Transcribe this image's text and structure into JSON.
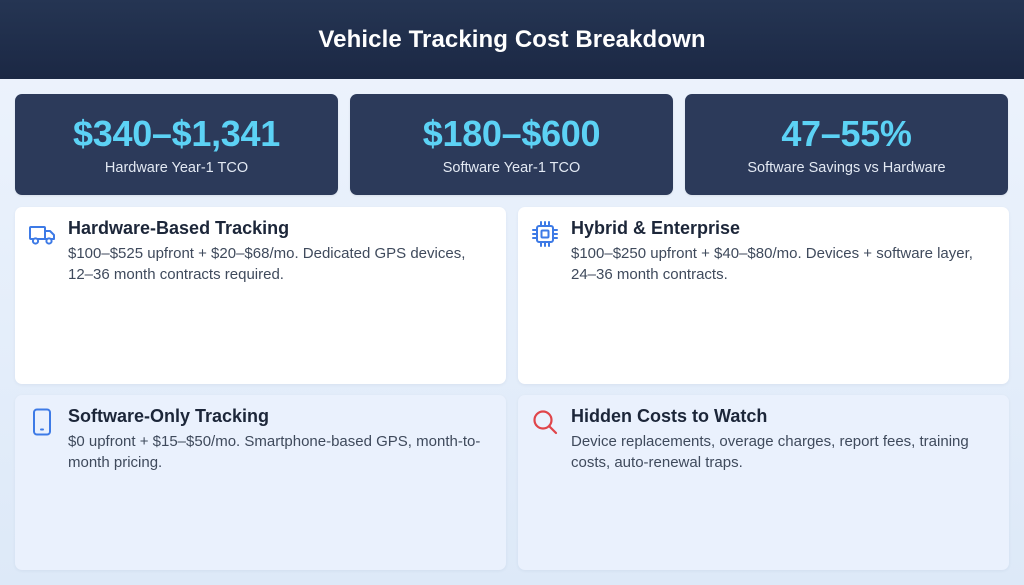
{
  "header": {
    "title": "Vehicle Tracking Cost Breakdown"
  },
  "stats": [
    {
      "value": "$340–$1,341",
      "label": "Hardware Year-1 TCO"
    },
    {
      "value": "$180–$600",
      "label": "Software Year-1 TCO"
    },
    {
      "value": "47–55%",
      "label": "Software Savings vs Hardware"
    }
  ],
  "cards": [
    {
      "title": "Hardware-Based Tracking",
      "description": "$100–$525 upfront + $20–$68/mo. Dedicated GPS devices, 12–36 month contracts required.",
      "icon": "truck-icon"
    },
    {
      "title": "Hybrid & Enterprise",
      "description": "$100–$250 upfront + $40–$80/mo. Devices + software layer, 24–36 month contracts.",
      "icon": "chip-icon"
    },
    {
      "title": "Software-Only Tracking",
      "description": "$0 upfront + $15–$50/mo. Smartphone-based GPS, month-to-month pricing.",
      "icon": "smartphone-icon"
    },
    {
      "title": "Hidden Costs to Watch",
      "description": "Device replacements, overage charges, report fees, training costs, auto-renewal traps.",
      "icon": "search-icon"
    }
  ],
  "colors": {
    "header_bg": "#1f2d4a",
    "stat_bg": "#2c3a5a",
    "stat_value": "#5cd2f5",
    "icon_blue": "#3d7ae6",
    "icon_red": "#e0454a"
  }
}
